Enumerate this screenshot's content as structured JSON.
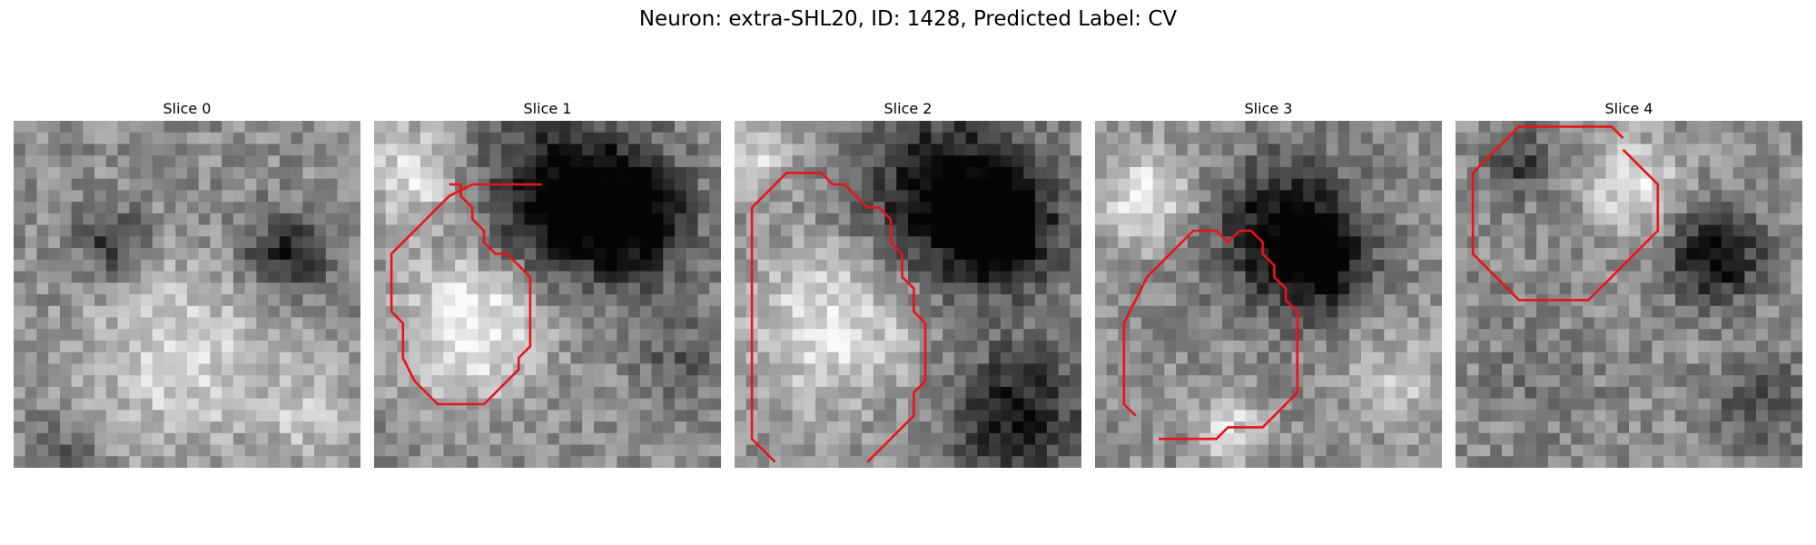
{
  "figure": {
    "title": "Neuron: extra-SHL20, ID: 1428, Predicted Label: CV"
  },
  "colors": {
    "contour": "#e8141a",
    "background": "#ffffff"
  },
  "panels": [
    {
      "title": "Slice 0",
      "contour_points": []
    },
    {
      "title": "Slice 1",
      "contour_points": [
        [
          14,
          5
        ],
        [
          8,
          5
        ],
        [
          6,
          6
        ],
        [
          5,
          7
        ],
        [
          3,
          9
        ],
        [
          1,
          11
        ],
        [
          1,
          16
        ],
        [
          2,
          17
        ],
        [
          2,
          20
        ],
        [
          3,
          22
        ],
        [
          5,
          24
        ],
        [
          9,
          24
        ],
        [
          12,
          21
        ],
        [
          12,
          20
        ],
        [
          13,
          19
        ],
        [
          13,
          13
        ],
        [
          12,
          12
        ],
        [
          11,
          11
        ],
        [
          10,
          11
        ],
        [
          9,
          10
        ],
        [
          9,
          9
        ],
        [
          8,
          8
        ],
        [
          8,
          7
        ],
        [
          7,
          6
        ],
        [
          7,
          5
        ],
        [
          6,
          5
        ]
      ]
    },
    {
      "title": "Slice 2",
      "contour_points": [
        [
          3,
          29
        ],
        [
          1,
          27
        ],
        [
          1,
          7
        ],
        [
          3,
          5
        ],
        [
          4,
          4
        ],
        [
          7,
          4
        ],
        [
          8,
          5
        ],
        [
          9,
          5
        ],
        [
          10,
          6
        ],
        [
          11,
          7
        ],
        [
          12,
          7
        ],
        [
          13,
          8
        ],
        [
          13,
          10
        ],
        [
          14,
          11
        ],
        [
          14,
          13
        ],
        [
          15,
          14
        ],
        [
          15,
          16
        ],
        [
          16,
          17
        ],
        [
          16,
          22
        ],
        [
          15,
          23
        ],
        [
          15,
          25
        ],
        [
          13,
          27
        ],
        [
          11,
          29
        ]
      ]
    },
    {
      "title": "Slice 3",
      "contour_points": [
        [
          5,
          27
        ],
        [
          10,
          27
        ],
        [
          11,
          26
        ],
        [
          14,
          26
        ],
        [
          15,
          25
        ],
        [
          16,
          24
        ],
        [
          17,
          23
        ],
        [
          17,
          16
        ],
        [
          16,
          15
        ],
        [
          16,
          14
        ],
        [
          15,
          13
        ],
        [
          15,
          12
        ],
        [
          14,
          11
        ],
        [
          14,
          10
        ],
        [
          13,
          9
        ],
        [
          12,
          9
        ],
        [
          11,
          10
        ],
        [
          10,
          9
        ],
        [
          8,
          9
        ],
        [
          7,
          10
        ],
        [
          6,
          11
        ],
        [
          5,
          12
        ],
        [
          4,
          13
        ],
        [
          3,
          15
        ],
        [
          2,
          17
        ],
        [
          2,
          18
        ],
        [
          2,
          24
        ],
        [
          3,
          25
        ]
      ]
    },
    {
      "title": "Slice 4",
      "contour_points": [
        [
          14,
          1
        ],
        [
          13,
          0
        ],
        [
          11,
          0
        ],
        [
          9,
          0
        ],
        [
          6,
          0
        ],
        [
          5,
          0
        ],
        [
          4,
          1
        ],
        [
          3,
          2
        ],
        [
          2,
          3
        ],
        [
          1,
          4
        ],
        [
          1,
          11
        ],
        [
          2,
          12
        ],
        [
          3,
          13
        ],
        [
          4,
          14
        ],
        [
          5,
          15
        ],
        [
          6,
          15
        ],
        [
          7,
          15
        ],
        [
          9,
          15
        ],
        [
          11,
          15
        ],
        [
          12,
          14
        ],
        [
          13,
          13
        ],
        [
          14,
          12
        ],
        [
          15,
          11
        ],
        [
          16,
          10
        ],
        [
          17,
          9
        ],
        [
          17,
          5
        ],
        [
          16,
          4
        ],
        [
          15,
          3
        ],
        [
          14,
          2
        ]
      ]
    }
  ]
}
